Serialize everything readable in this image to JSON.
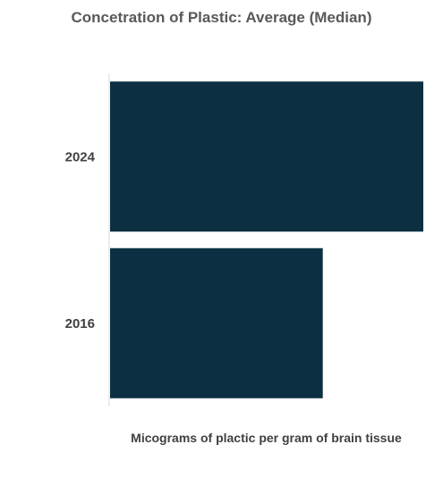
{
  "chart_data": {
    "type": "bar",
    "orientation": "horizontal",
    "title": "Concetration of Plastic: Average (Median)",
    "xlabel": "Micograms  of plactic  per gram of brain tissue",
    "ylabel": "",
    "categories": [
      "2024",
      "2016"
    ],
    "values": [
      1.0,
      0.68
    ],
    "xlim": [
      0,
      1.0
    ],
    "grid": false,
    "legend": "none",
    "bar_color": "#0c3042",
    "axis_line_color": "#d9d9d9"
  }
}
